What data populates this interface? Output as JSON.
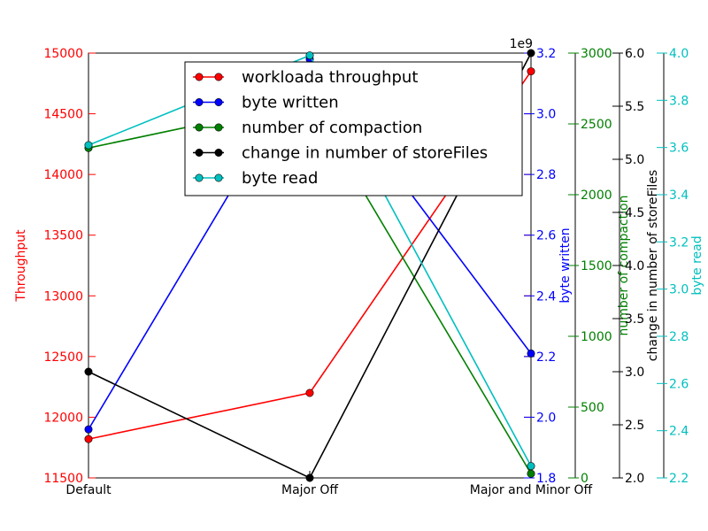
{
  "chart_data": {
    "type": "line",
    "categories": [
      "Default",
      "Major Off",
      "Major and Minor Off"
    ],
    "series": [
      {
        "name": "workloada throughput",
        "color": "#ff0000",
        "axis": "throughput",
        "values": [
          11820,
          12200,
          14850
        ]
      },
      {
        "name": "byte written",
        "color": "#0000ff",
        "axis": "byte_written",
        "values": [
          1960000000.0,
          3180000000.0,
          2210000000.0
        ]
      },
      {
        "name": "number of compaction",
        "color": "#008000",
        "axis": "compaction",
        "values": [
          2330,
          2660,
          30
        ]
      },
      {
        "name": "change in number of storeFiles",
        "color": "#000000",
        "axis": "storefiles",
        "values": [
          3.0,
          2.0,
          6.0
        ]
      },
      {
        "name": "byte read",
        "color": "#00bfbf",
        "axis": "byte_read",
        "values": [
          3.61,
          3.99,
          2.25
        ]
      }
    ],
    "axes": {
      "throughput": {
        "label": "Throughput",
        "color": "#ff0000",
        "side": "left",
        "ylim": [
          11500,
          15000
        ],
        "ticks": [
          "11500",
          "12000",
          "12500",
          "13000",
          "13500",
          "14000",
          "14500",
          "15000"
        ]
      },
      "byte_written": {
        "label": "byte written",
        "color": "#0000ff",
        "side": "right",
        "ylim": [
          1800000000.0,
          3200000000.0
        ],
        "ticks": [
          "1.8",
          "2.0",
          "2.2",
          "2.4",
          "2.6",
          "2.8",
          "3.0",
          "3.2"
        ],
        "offset_label": "1e9"
      },
      "compaction": {
        "label": "number of compaction",
        "color": "#008000",
        "side": "right",
        "ylim": [
          0,
          3000
        ],
        "ticks": [
          "0",
          "500",
          "1000",
          "1500",
          "2000",
          "2500",
          "3000"
        ]
      },
      "storefiles": {
        "label": "change in number of storeFiles",
        "color": "#000000",
        "side": "right",
        "ylim": [
          2.0,
          6.0
        ],
        "ticks": [
          "2.0",
          "2.5",
          "3.0",
          "3.5",
          "4.0",
          "4.5",
          "5.0",
          "5.5",
          "6.0"
        ]
      },
      "byte_read": {
        "label": "byte read",
        "color": "#00bfbf",
        "side": "right",
        "ylim": [
          2.2,
          4.0
        ],
        "ticks": [
          "2.2",
          "2.4",
          "2.6",
          "2.8",
          "3.0",
          "3.2",
          "3.4",
          "3.6",
          "3.8",
          "4.0"
        ]
      }
    },
    "legend_position": "top-center",
    "grid": false
  }
}
